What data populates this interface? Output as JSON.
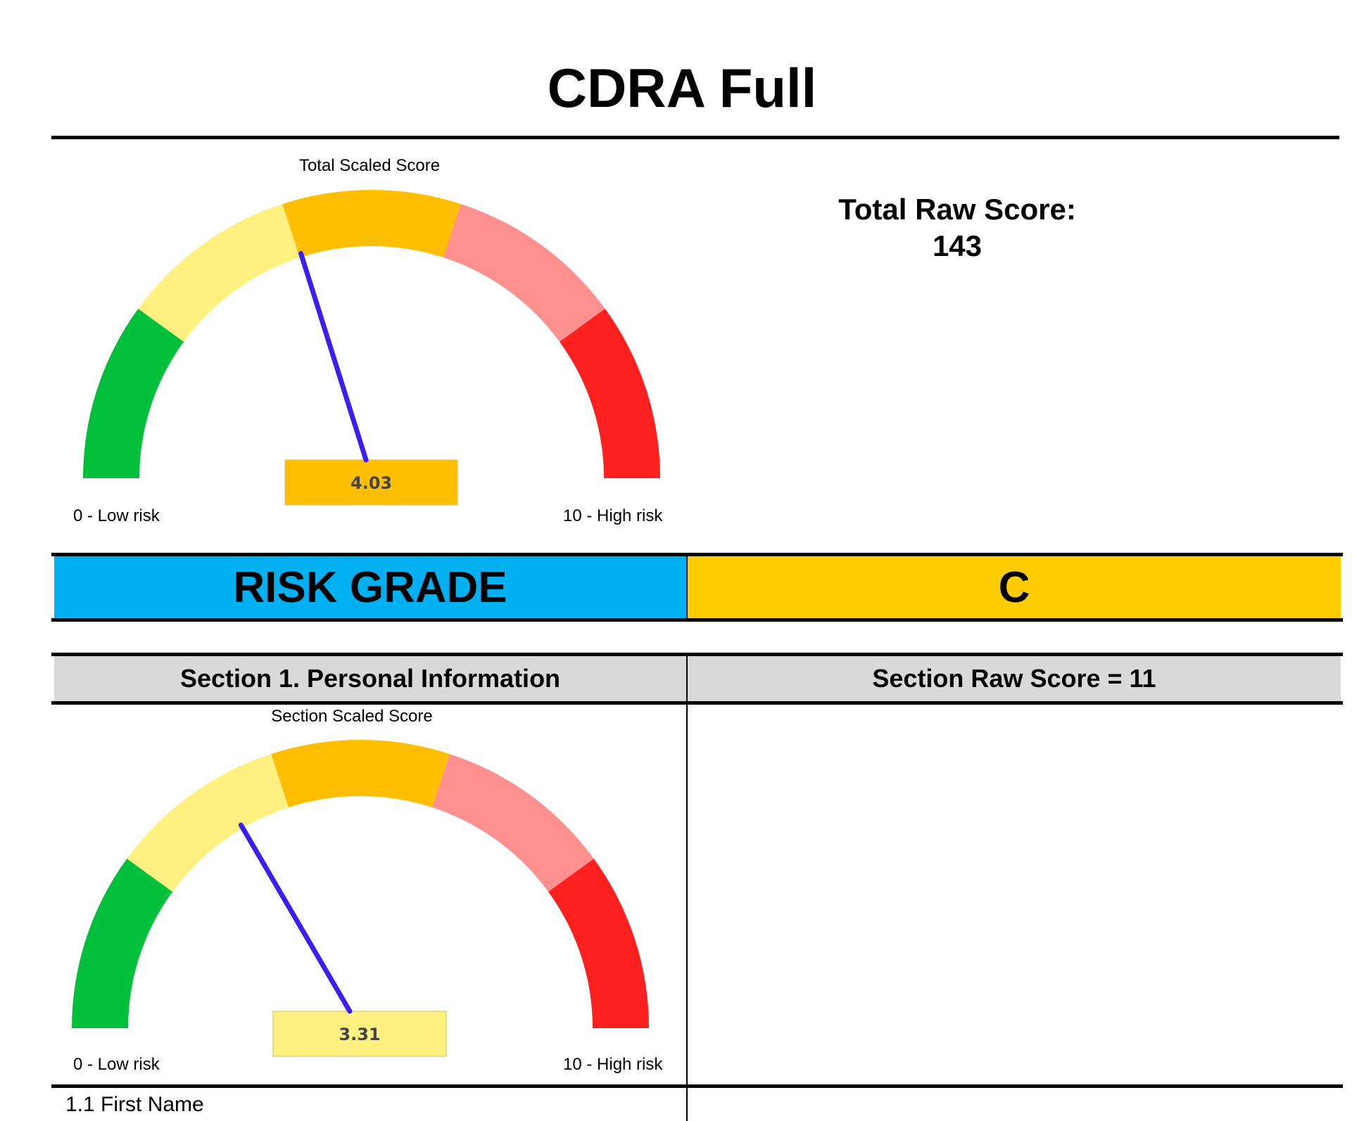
{
  "page": {
    "title": "CDRA Full"
  },
  "total": {
    "gauge_label": "Total Scaled Score",
    "scaled_score": 4.03,
    "scaled_score_text": "4.03",
    "low_label": "0 - Low risk",
    "high_label": "10 - High risk",
    "raw_score_label": "Total Raw Score:",
    "raw_score_value": "143"
  },
  "risk_grade": {
    "label": "RISK GRADE",
    "value": "C"
  },
  "section1": {
    "title": "Section 1. Personal Information",
    "raw_score_text": "Section Raw Score = 11",
    "gauge_label": "Section Scaled Score",
    "scaled_score": 3.31,
    "scaled_score_text": "3.31",
    "low_label": "0 - Low risk",
    "high_label": "10 - High risk",
    "first_field": "1.1 First Name"
  },
  "gauge_colors": {
    "bands": [
      "#00bf3b",
      "#fff080",
      "#ffbf00",
      "#ff9090",
      "#ff2020"
    ],
    "needle": "#3b1ff0"
  }
}
